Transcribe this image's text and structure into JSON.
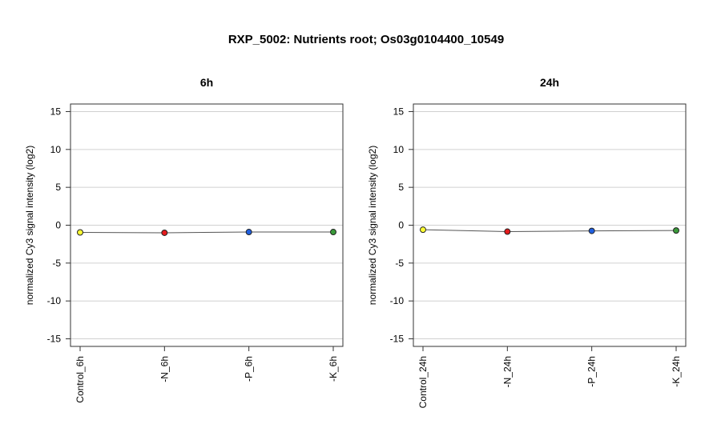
{
  "title": "RXP_5002: Nutrients root; Os03g0104400_10549",
  "chart_data": [
    {
      "type": "line",
      "title": "6h",
      "ylabel": "normalized Cy3 signal intensity (log2)",
      "xlabel": "",
      "ylim": [
        -16,
        16
      ],
      "yticks": [
        -15,
        -10,
        -5,
        0,
        5,
        10,
        15
      ],
      "grid": true,
      "categories": [
        "Control_6h",
        "-N_6h",
        "-P_6h",
        "-K_6h"
      ],
      "values": [
        -0.95,
        -1.0,
        -0.9,
        -0.9
      ],
      "point_colors": [
        "#ffff33",
        "#e41a1c",
        "#1f5fe0",
        "#3a9a3a"
      ]
    },
    {
      "type": "line",
      "title": "24h",
      "ylabel": "normalized Cy3 signal intensity (log2)",
      "xlabel": "",
      "ylim": [
        -16,
        16
      ],
      "yticks": [
        -15,
        -10,
        -5,
        0,
        5,
        10,
        15
      ],
      "grid": true,
      "categories": [
        "Control_24h",
        "-N_24h",
        "-P_24h",
        "-K_24h"
      ],
      "values": [
        -0.6,
        -0.85,
        -0.75,
        -0.7
      ],
      "point_colors": [
        "#ffff33",
        "#e41a1c",
        "#1f5fe0",
        "#3a9a3a"
      ]
    }
  ]
}
